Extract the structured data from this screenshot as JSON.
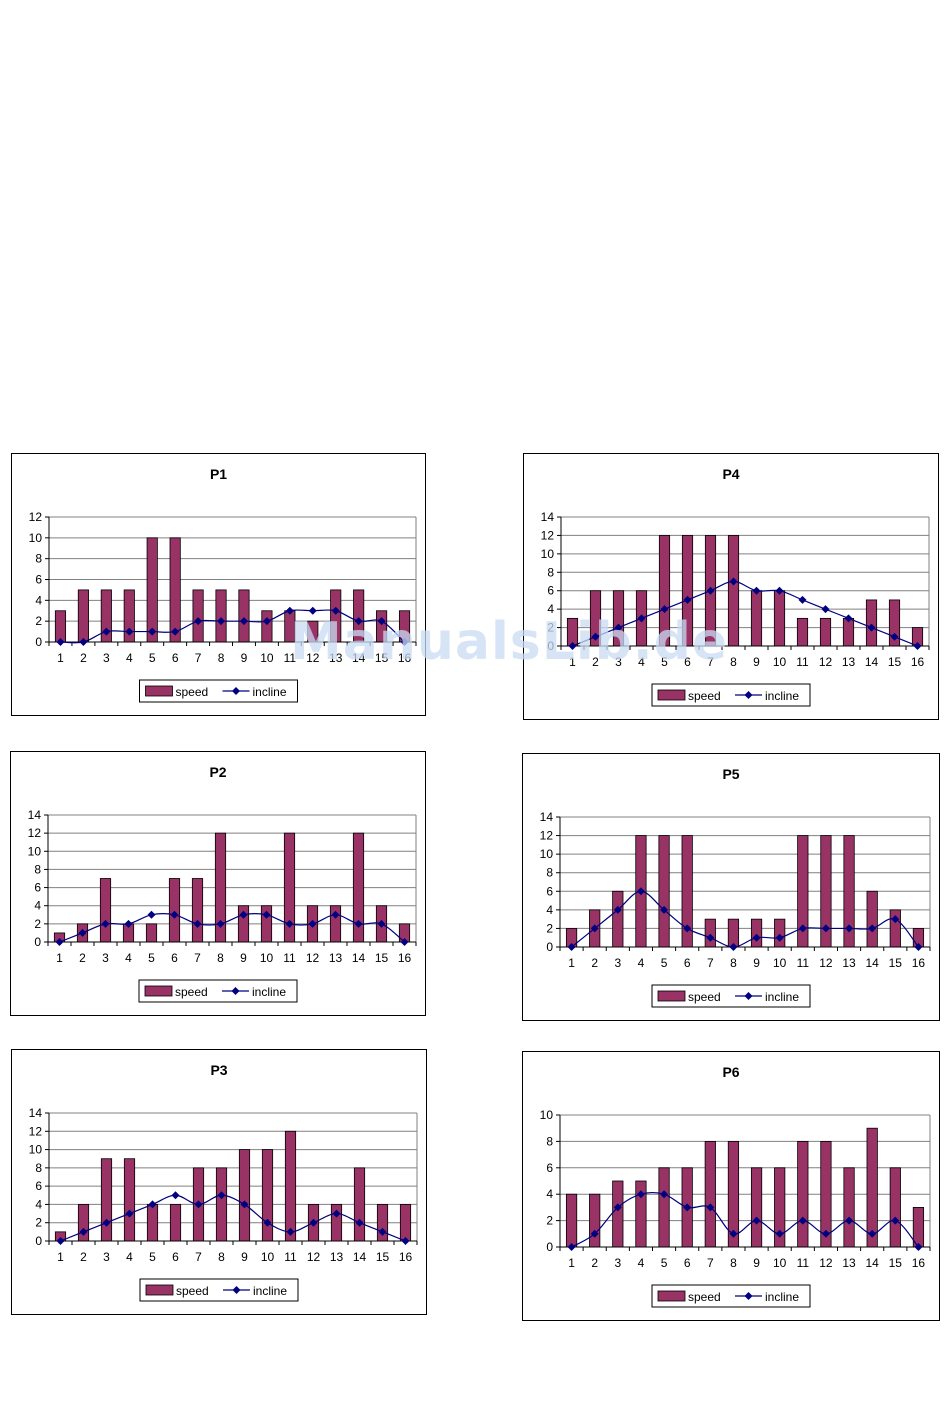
{
  "watermark": "ManualsLib.de",
  "colors": {
    "bar": "#993366",
    "line": "#000080",
    "grid": "#808080"
  },
  "legend": {
    "bar_label": "speed",
    "line_label": "incline"
  },
  "chart_data": [
    {
      "type": "bar",
      "title": "P1",
      "categories": [
        "1",
        "2",
        "3",
        "4",
        "5",
        "6",
        "7",
        "8",
        "9",
        "10",
        "11",
        "12",
        "13",
        "14",
        "15",
        "16"
      ],
      "ylim": [
        0,
        12
      ],
      "yticks": [
        0,
        2,
        4,
        6,
        8,
        10,
        12
      ],
      "series": [
        {
          "name": "speed",
          "type": "bar",
          "values": [
            3,
            5,
            5,
            5,
            10,
            10,
            5,
            5,
            5,
            3,
            3,
            2,
            5,
            5,
            3,
            3
          ]
        },
        {
          "name": "incline",
          "type": "line",
          "values": [
            0,
            0,
            1,
            1,
            1,
            1,
            2,
            2,
            2,
            2,
            3,
            3,
            3,
            2,
            2,
            0
          ]
        }
      ],
      "legend": "bottom"
    },
    {
      "type": "bar",
      "title": "P4",
      "categories": [
        "1",
        "2",
        "3",
        "4",
        "5",
        "6",
        "7",
        "8",
        "9",
        "10",
        "11",
        "12",
        "13",
        "14",
        "15",
        "16"
      ],
      "ylim": [
        0,
        14
      ],
      "yticks": [
        0,
        2,
        4,
        6,
        8,
        10,
        12,
        14
      ],
      "series": [
        {
          "name": "speed",
          "type": "bar",
          "values": [
            3,
            6,
            6,
            6,
            12,
            12,
            12,
            12,
            6,
            6,
            3,
            3,
            3,
            5,
            5,
            2
          ]
        },
        {
          "name": "incline",
          "type": "line",
          "values": [
            0,
            1,
            2,
            3,
            4,
            5,
            6,
            7,
            6,
            6,
            5,
            4,
            3,
            2,
            1,
            0
          ]
        }
      ],
      "legend": "bottom"
    },
    {
      "type": "bar",
      "title": "P2",
      "categories": [
        "1",
        "2",
        "3",
        "4",
        "5",
        "6",
        "7",
        "8",
        "9",
        "10",
        "11",
        "12",
        "13",
        "14",
        "15",
        "16"
      ],
      "ylim": [
        0,
        14
      ],
      "yticks": [
        0,
        2,
        4,
        6,
        8,
        10,
        12,
        14
      ],
      "series": [
        {
          "name": "speed",
          "type": "bar",
          "values": [
            1,
            2,
            7,
            2,
            2,
            7,
            7,
            12,
            4,
            4,
            12,
            4,
            4,
            12,
            4,
            2
          ]
        },
        {
          "name": "incline",
          "type": "line",
          "values": [
            0,
            1,
            2,
            2,
            3,
            3,
            2,
            2,
            3,
            3,
            2,
            2,
            3,
            2,
            2,
            0
          ]
        }
      ],
      "legend": "bottom"
    },
    {
      "type": "bar",
      "title": "P5",
      "categories": [
        "1",
        "2",
        "3",
        "4",
        "5",
        "6",
        "7",
        "8",
        "9",
        "10",
        "11",
        "12",
        "13",
        "14",
        "15",
        "16"
      ],
      "ylim": [
        0,
        14
      ],
      "yticks": [
        0,
        2,
        4,
        6,
        8,
        10,
        12,
        14
      ],
      "series": [
        {
          "name": "speed",
          "type": "bar",
          "values": [
            2,
            4,
            6,
            12,
            12,
            12,
            3,
            3,
            3,
            3,
            12,
            12,
            12,
            6,
            4,
            2
          ]
        },
        {
          "name": "incline",
          "type": "line",
          "values": [
            0,
            2,
            4,
            6,
            4,
            2,
            1,
            0,
            1,
            1,
            2,
            2,
            2,
            2,
            3,
            0
          ]
        }
      ],
      "legend": "bottom"
    },
    {
      "type": "bar",
      "title": "P3",
      "categories": [
        "1",
        "2",
        "3",
        "4",
        "5",
        "6",
        "7",
        "8",
        "9",
        "10",
        "11",
        "12",
        "13",
        "14",
        "15",
        "16"
      ],
      "ylim": [
        0,
        14
      ],
      "yticks": [
        0,
        2,
        4,
        6,
        8,
        10,
        12,
        14
      ],
      "series": [
        {
          "name": "speed",
          "type": "bar",
          "values": [
            1,
            4,
            9,
            9,
            4,
            4,
            8,
            8,
            10,
            10,
            12,
            4,
            4,
            8,
            4,
            4
          ]
        },
        {
          "name": "incline",
          "type": "line",
          "values": [
            0,
            1,
            2,
            3,
            4,
            5,
            4,
            5,
            4,
            2,
            1,
            2,
            3,
            2,
            1,
            0
          ]
        }
      ],
      "legend": "bottom"
    },
    {
      "type": "bar",
      "title": "P6",
      "categories": [
        "1",
        "2",
        "3",
        "4",
        "5",
        "6",
        "7",
        "8",
        "9",
        "10",
        "11",
        "12",
        "13",
        "14",
        "15",
        "16"
      ],
      "ylim": [
        0,
        10
      ],
      "yticks": [
        0,
        2,
        4,
        6,
        8,
        10
      ],
      "series": [
        {
          "name": "speed",
          "type": "bar",
          "values": [
            4,
            4,
            5,
            5,
            6,
            6,
            8,
            8,
            6,
            6,
            8,
            8,
            6,
            9,
            6,
            3
          ]
        },
        {
          "name": "incline",
          "type": "line",
          "values": [
            0,
            1,
            3,
            4,
            4,
            3,
            3,
            1,
            2,
            1,
            2,
            1,
            2,
            1,
            2,
            0
          ]
        }
      ],
      "legend": "bottom"
    }
  ]
}
